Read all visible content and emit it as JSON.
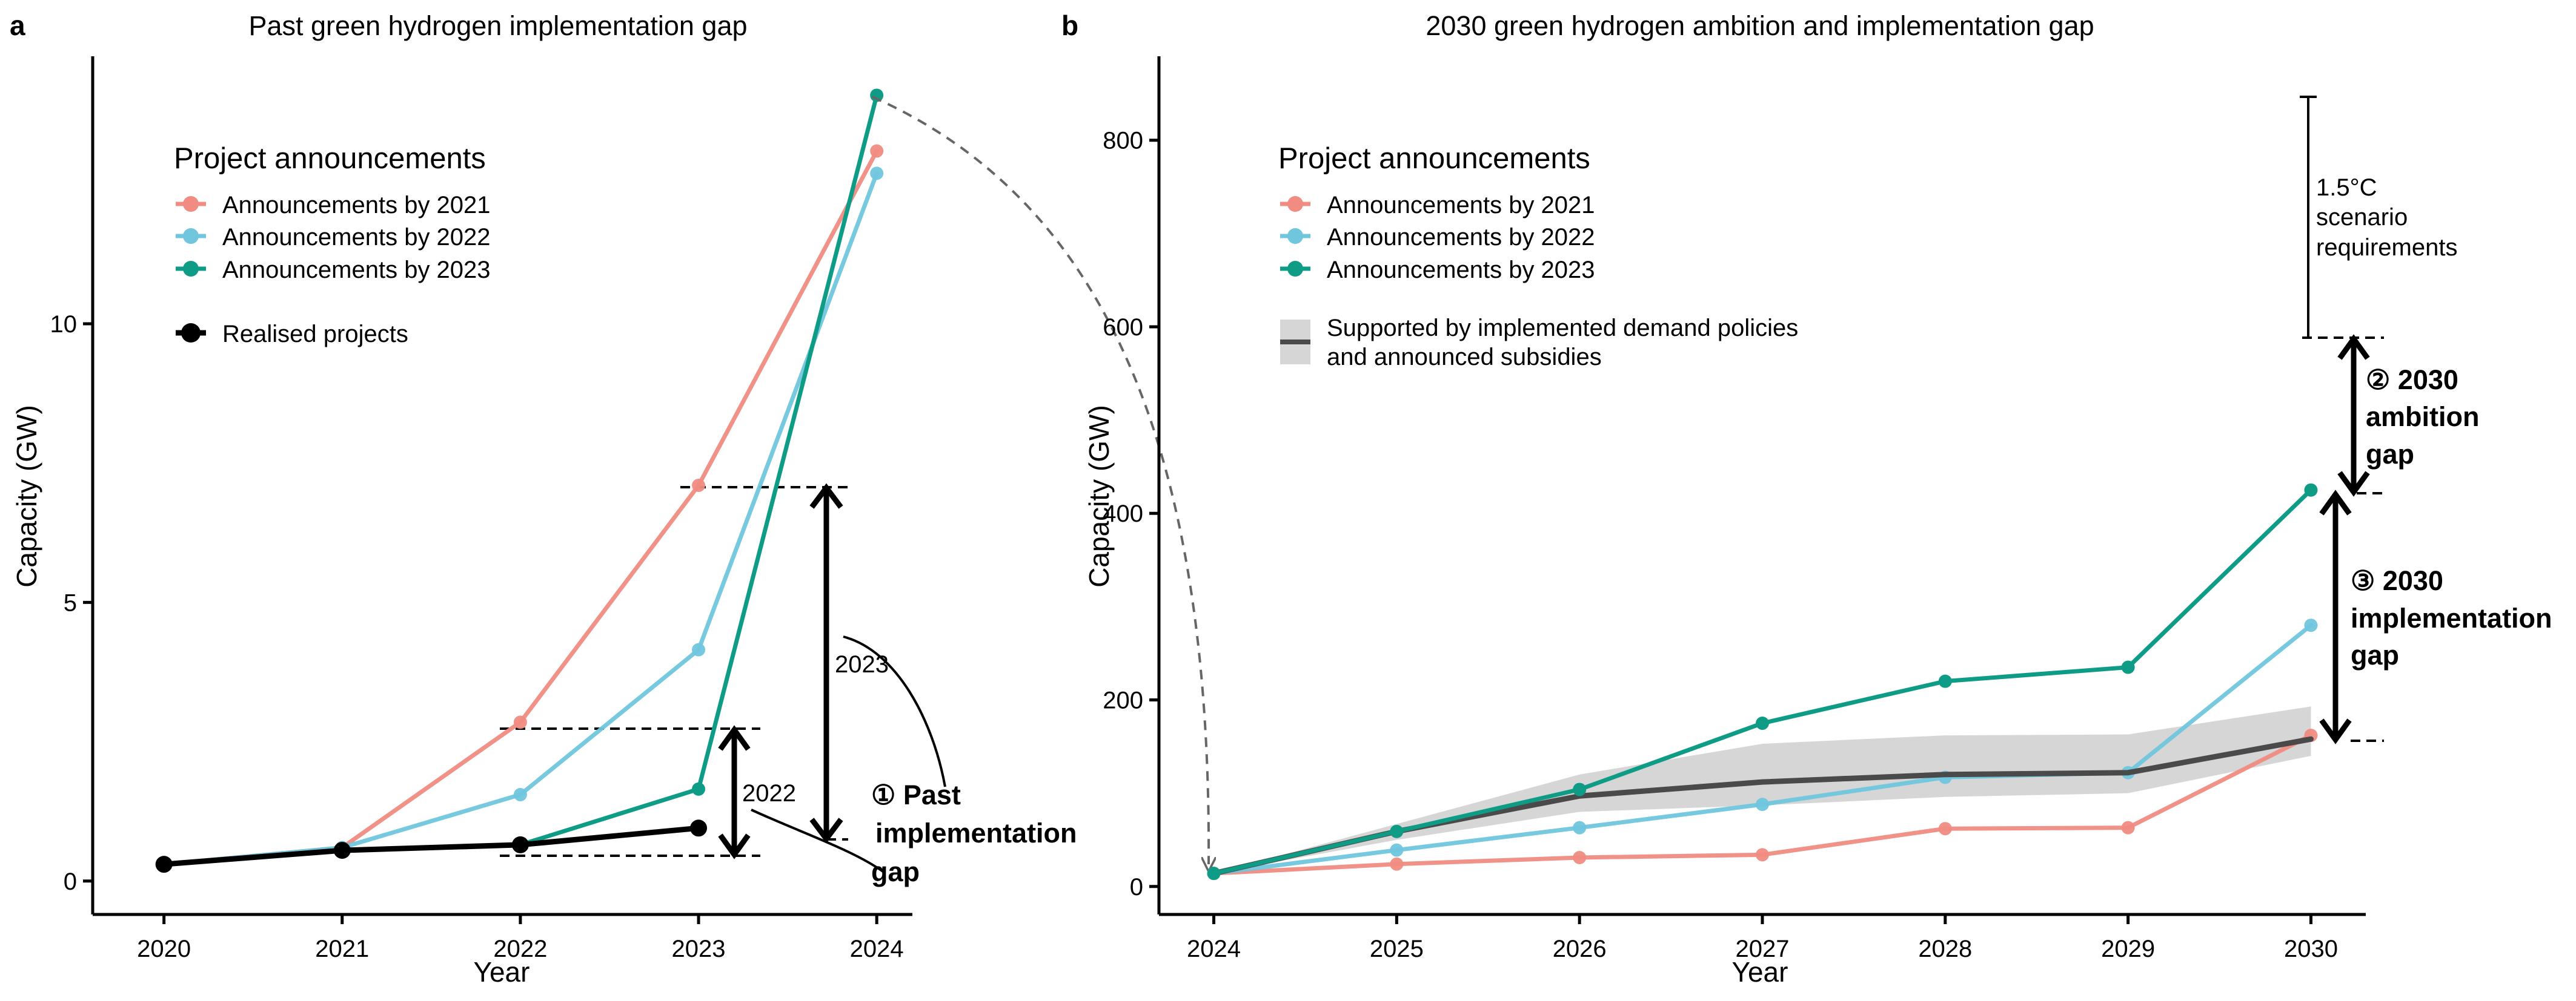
{
  "colors": {
    "ann2021": "#F08C82",
    "ann2022": "#6FC6DD",
    "ann2023": "#0F9C86",
    "realised": "#000000",
    "policy_line": "#4A4A4A",
    "policy_band": "#D6D6D6"
  },
  "legend": {
    "title": "Project announcements",
    "ann2021": "Announcements by 2021",
    "ann2022": "Announcements by 2022",
    "ann2023": "Announcements by 2023",
    "realised": "Realised projects",
    "policy_line1": "Supported by implemented demand policies",
    "policy_line2": "and announced subsidies"
  },
  "annotations": {
    "gap2023_label": "2023",
    "gap2022_label": "2022",
    "past_gap_1": "① Past",
    "past_gap_2": "implementation",
    "past_gap_3": "gap",
    "scenario_1": "1.5°C",
    "scenario_2": "scenario",
    "scenario_3": "requirements",
    "ambition_1": "② 2030",
    "ambition_2": "ambition",
    "ambition_3": "gap",
    "impl_1": "③ 2030",
    "impl_2": "implementation",
    "impl_3": "gap"
  },
  "chart_data": [
    {
      "panel_letter": "a",
      "type": "line",
      "title": "Past green hydrogen implementation gap",
      "xlabel": "Year",
      "ylabel": "Capacity (GW)",
      "x": [
        2020,
        2021,
        2022,
        2023,
        2024
      ],
      "xticks": [
        "2020",
        "2021",
        "2022",
        "2023",
        "2024"
      ],
      "yticks": [
        "0",
        "5",
        "10"
      ],
      "xlim": [
        2019.6,
        2024.2
      ],
      "ylim": [
        -0.6,
        14.8
      ],
      "series": [
        {
          "name": "Announcements by 2021",
          "key": "ann2021",
          "x": [
            2020,
            2021,
            2022,
            2023,
            2024
          ],
          "values": [
            0.3,
            0.6,
            2.85,
            7.1,
            13.1
          ]
        },
        {
          "name": "Announcements by 2022",
          "key": "ann2022",
          "x": [
            2020,
            2021,
            2022,
            2023,
            2024
          ],
          "values": [
            0.3,
            0.6,
            1.55,
            4.15,
            12.7
          ]
        },
        {
          "name": "Announcements by 2023",
          "key": "ann2023",
          "x": [
            2020,
            2021,
            2022,
            2023,
            2024
          ],
          "values": [
            0.3,
            0.55,
            0.65,
            1.65,
            14.1
          ]
        },
        {
          "name": "Realised projects",
          "key": "realised",
          "x": [
            2020,
            2021,
            2022,
            2023
          ],
          "values": [
            0.3,
            0.55,
            0.65,
            0.95
          ]
        }
      ]
    },
    {
      "panel_letter": "b",
      "type": "line",
      "title": "2030 green hydrogen ambition and implementation gap",
      "xlabel": "Year",
      "ylabel": "Capacity (GW)",
      "x": [
        2024,
        2025,
        2026,
        2027,
        2028,
        2029,
        2030
      ],
      "xticks": [
        "2024",
        "2025",
        "2026",
        "2027",
        "2028",
        "2029",
        "2030"
      ],
      "yticks": [
        "0",
        "200",
        "400",
        "600",
        "800"
      ],
      "xlim": [
        2023.7,
        2030.3
      ],
      "ylim": [
        -30,
        890
      ],
      "series": [
        {
          "name": "Announcements by 2021",
          "key": "ann2021",
          "x": [
            2024,
            2025,
            2026,
            2027,
            2028,
            2029,
            2030
          ],
          "values": [
            14,
            24,
            31,
            34,
            62,
            63,
            162
          ]
        },
        {
          "name": "Announcements by 2022",
          "key": "ann2022",
          "x": [
            2024,
            2025,
            2026,
            2027,
            2028,
            2029,
            2030
          ],
          "values": [
            14,
            39,
            63,
            88,
            117,
            122,
            280
          ]
        },
        {
          "name": "Announcements by 2023",
          "key": "ann2023",
          "x": [
            2024,
            2025,
            2026,
            2027,
            2028,
            2029,
            2030
          ],
          "values": [
            14,
            59,
            104,
            175,
            220,
            235,
            425
          ]
        },
        {
          "name": "Supported by implemented demand policies and announced subsidies",
          "key": "policy",
          "x": [
            2024,
            2025,
            2026,
            2027,
            2028,
            2029,
            2030
          ],
          "values": [
            14,
            59,
            97,
            112,
            120,
            122,
            158
          ],
          "lower": [
            14,
            50,
            80,
            87,
            96,
            100,
            140
          ],
          "upper": [
            14,
            67,
            120,
            153,
            162,
            163,
            193
          ]
        }
      ],
      "scenario_requirement_range": [
        590,
        850
      ],
      "ambition_gap": [
        425,
        590
      ],
      "implementation_gap": [
        158,
        425
      ]
    }
  ]
}
